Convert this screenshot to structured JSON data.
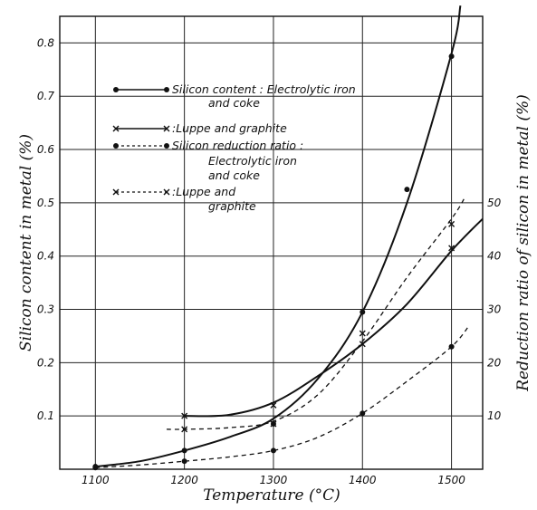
{
  "chart_data": {
    "type": "line",
    "xlabel": "Temperature (°C)",
    "ylabel": "Silicon content in metal (%)",
    "y2label": "Reduction ratio of silicon in metal (%)",
    "xlim": [
      1060,
      1535
    ],
    "ylim": [
      0,
      0.85
    ],
    "y2lim": [
      0,
      85
    ],
    "x_ticks": [
      1100,
      1200,
      1300,
      1400,
      1500
    ],
    "x_tick_labels": [
      "1100",
      "1200",
      "1300",
      "1400",
      "1500"
    ],
    "y_ticks": [
      0.1,
      0.2,
      0.3,
      0.4,
      0.5,
      0.6,
      0.7,
      0.8
    ],
    "y_tick_labels": [
      "0.1",
      "0.2",
      "0.3",
      "0.4",
      "0.5",
      "0.6",
      "0.7",
      "0.8"
    ],
    "y2_ticks": [
      10,
      20,
      30,
      40,
      50
    ],
    "y2_tick_labels": [
      "10",
      "20",
      "30",
      "40",
      "50"
    ],
    "grid": true,
    "legend_position": "upper-left",
    "series": [
      {
        "name": "Silicon content : Electrolytic iron and coke",
        "axis": "left",
        "line": "solid",
        "marker": "dot",
        "curve_x": [
          1100,
          1150,
          1200,
          1250,
          1300,
          1350,
          1400,
          1450,
          1500,
          1510
        ],
        "curve_y": [
          0.005,
          0.015,
          0.035,
          0.06,
          0.095,
          0.17,
          0.295,
          0.5,
          0.78,
          0.87
        ],
        "points_x": [
          1100,
          1200,
          1300,
          1400,
          1450,
          1500
        ],
        "points_y": [
          0.005,
          0.035,
          0.085,
          0.295,
          0.525,
          0.775
        ]
      },
      {
        "name": "Luppe and graphite",
        "axis": "left",
        "line": "solid",
        "marker": "x",
        "curve_x": [
          1200,
          1250,
          1300,
          1350,
          1400,
          1450,
          1500,
          1535
        ],
        "curve_y": [
          0.1,
          0.102,
          0.125,
          0.175,
          0.235,
          0.31,
          0.41,
          0.47
        ],
        "points_x": [
          1200,
          1300,
          1400,
          1500
        ],
        "points_y": [
          0.1,
          0.12,
          0.235,
          0.415
        ]
      },
      {
        "name": "Silicon reduction ratio : Electrolytic iron and coke",
        "axis": "right",
        "line": "dashed",
        "marker": "dot",
        "curve_x": [
          1100,
          1150,
          1200,
          1250,
          1300,
          1350,
          1400,
          1450,
          1500,
          1520
        ],
        "curve_y": [
          0.3,
          0.8,
          1.5,
          2.3,
          3.5,
          6,
          10.5,
          16.5,
          23,
          27
        ],
        "points_x": [
          1100,
          1200,
          1300,
          1400,
          1500
        ],
        "points_y": [
          0.3,
          1.5,
          3.5,
          10.5,
          23
        ]
      },
      {
        "name": "Luppe and graphite",
        "axis": "right",
        "line": "dashed",
        "marker": "x",
        "curve_x": [
          1180,
          1200,
          1250,
          1300,
          1350,
          1400,
          1450,
          1500,
          1515
        ],
        "curve_y": [
          7.5,
          7.5,
          7.8,
          9,
          14,
          24,
          36,
          47,
          51
        ],
        "points_x": [
          1200,
          1300,
          1400,
          1500
        ],
        "points_y": [
          7.5,
          8.5,
          25.5,
          46
        ]
      }
    ]
  },
  "legend": [
    {
      "label": "Silicon content : Electrolytic iron",
      "line": "solid",
      "marker": "dot"
    },
    {
      "label": "and coke",
      "line": "none",
      "marker": "none"
    },
    {
      "label": ":Luppe and graphite",
      "line": "solid",
      "marker": "x"
    },
    {
      "label": "Silicon reduction ratio :",
      "line": "dashed",
      "marker": "dot"
    },
    {
      "label": "Electrolytic iron",
      "line": "none",
      "marker": "none"
    },
    {
      "label": "and coke",
      "line": "none",
      "marker": "none"
    },
    {
      "label": ":Luppe and",
      "line": "dashed",
      "marker": "x"
    },
    {
      "label": "graphite",
      "line": "none",
      "marker": "none"
    }
  ]
}
